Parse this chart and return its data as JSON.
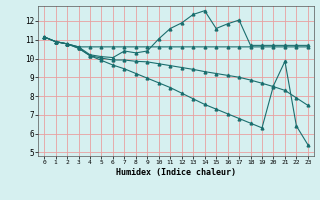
{
  "title": "",
  "xlabel": "Humidex (Indice chaleur)",
  "ylabel": "",
  "xlim": [
    -0.5,
    23.5
  ],
  "ylim": [
    4.8,
    12.8
  ],
  "yticks": [
    5,
    6,
    7,
    8,
    9,
    10,
    11,
    12
  ],
  "xticks": [
    0,
    1,
    2,
    3,
    4,
    5,
    6,
    7,
    8,
    9,
    10,
    11,
    12,
    13,
    14,
    15,
    16,
    17,
    18,
    19,
    20,
    21,
    22,
    23
  ],
  "background_color": "#d6f0f0",
  "grid_color": "#e8a0a0",
  "line_color": "#1a6e6e",
  "lines": [
    {
      "comment": "flat line ~10.7-11",
      "x": [
        0,
        1,
        2,
        3,
        4,
        5,
        6,
        7,
        8,
        9,
        10,
        11,
        12,
        13,
        14,
        15,
        16,
        17,
        18,
        19,
        20,
        21,
        22,
        23
      ],
      "y": [
        11.15,
        10.9,
        10.78,
        10.62,
        10.62,
        10.62,
        10.62,
        10.62,
        10.62,
        10.62,
        10.62,
        10.62,
        10.62,
        10.62,
        10.62,
        10.62,
        10.62,
        10.62,
        10.62,
        10.62,
        10.62,
        10.62,
        10.62,
        10.62
      ],
      "marker": "^",
      "markersize": 2.0,
      "linewidth": 0.8
    },
    {
      "x": [
        0,
        1,
        2,
        3,
        4,
        5,
        6,
        7,
        8,
        9,
        10,
        11,
        12,
        13,
        14,
        15,
        16,
        17,
        18,
        19,
        20,
        21,
        22,
        23
      ],
      "y": [
        11.15,
        10.9,
        10.78,
        10.62,
        10.2,
        10.1,
        10.05,
        10.4,
        10.3,
        10.4,
        11.05,
        11.6,
        11.9,
        12.35,
        12.55,
        11.6,
        11.85,
        12.05,
        10.7,
        10.7,
        10.7,
        10.7,
        10.7,
        10.7
      ],
      "marker": "^",
      "markersize": 2.0,
      "linewidth": 0.8
    },
    {
      "x": [
        0,
        1,
        2,
        3,
        4,
        5,
        6,
        7,
        8,
        9,
        10,
        11,
        12,
        13,
        14,
        15,
        16,
        17,
        18,
        19,
        20,
        21,
        22,
        23
      ],
      "y": [
        11.15,
        10.9,
        10.78,
        10.55,
        10.15,
        10.02,
        9.92,
        9.92,
        9.85,
        9.82,
        9.72,
        9.62,
        9.52,
        9.42,
        9.3,
        9.2,
        9.1,
        9.0,
        8.85,
        8.68,
        8.5,
        8.3,
        7.9,
        7.5
      ],
      "marker": "^",
      "markersize": 2.0,
      "linewidth": 0.8
    },
    {
      "x": [
        0,
        1,
        2,
        3,
        4,
        5,
        6,
        7,
        8,
        9,
        10,
        11,
        12,
        13,
        14,
        15,
        16,
        17,
        18,
        19,
        20,
        21,
        22,
        23
      ],
      "y": [
        11.15,
        10.9,
        10.78,
        10.55,
        10.15,
        9.9,
        9.65,
        9.45,
        9.2,
        8.95,
        8.7,
        8.45,
        8.15,
        7.85,
        7.55,
        7.3,
        7.05,
        6.8,
        6.55,
        6.3,
        8.55,
        9.85,
        6.4,
        5.4
      ],
      "marker": "^",
      "markersize": 2.0,
      "linewidth": 0.8
    }
  ]
}
